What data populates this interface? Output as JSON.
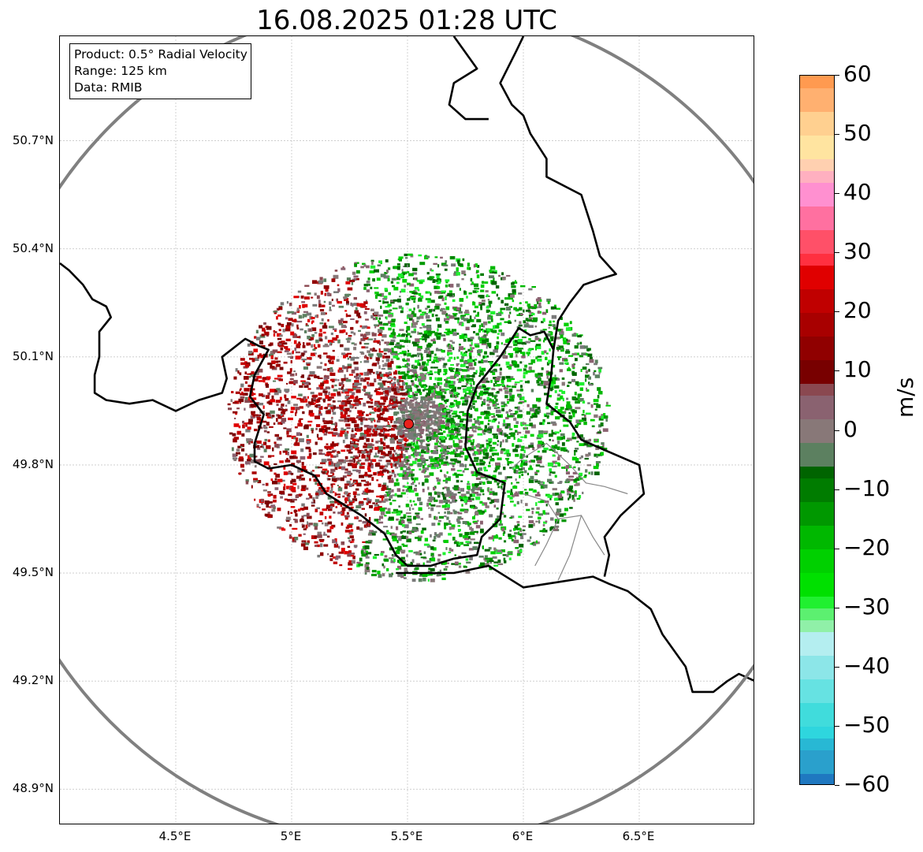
{
  "title": "16.08.2025 01:28 UTC",
  "info_box": {
    "product": "Product: 0.5° Radial Velocity",
    "range": "Range: 125 km",
    "data": "Data: RMIB"
  },
  "map": {
    "lon_range": [
      4.0,
      7.0
    ],
    "lat_range": [
      48.8,
      50.99
    ],
    "radar_site": {
      "lon": 5.505,
      "lat": 49.914
    },
    "radar_marker_color": "#e8211c",
    "range_ring_color": "#808080",
    "x_ticks": [
      {
        "value": 4.5,
        "label": "4.5°E"
      },
      {
        "value": 5.0,
        "label": "5°E"
      },
      {
        "value": 5.5,
        "label": "5.5°E"
      },
      {
        "value": 6.0,
        "label": "6°E"
      },
      {
        "value": 6.5,
        "label": "6.5°E"
      }
    ],
    "y_ticks": [
      {
        "value": 48.9,
        "label": "48.9°N"
      },
      {
        "value": 49.2,
        "label": "49.2°N"
      },
      {
        "value": 49.5,
        "label": "49.5°N"
      },
      {
        "value": 49.8,
        "label": "49.8°N"
      },
      {
        "value": 50.1,
        "label": "50.1°N"
      },
      {
        "value": 50.4,
        "label": "50.4°N"
      },
      {
        "value": 50.7,
        "label": "50.7°N"
      }
    ],
    "borders": [
      [
        [
          4.0,
          50.36
        ],
        [
          4.04,
          50.34
        ],
        [
          4.1,
          50.3
        ],
        [
          4.14,
          50.26
        ],
        [
          4.17,
          50.25
        ],
        [
          4.2,
          50.24
        ],
        [
          4.22,
          50.21
        ],
        [
          4.17,
          50.17
        ],
        [
          4.17,
          50.1
        ],
        [
          4.15,
          50.05
        ],
        [
          4.15,
          50.0
        ],
        [
          4.2,
          49.98
        ],
        [
          4.3,
          49.97
        ],
        [
          4.4,
          49.98
        ],
        [
          4.5,
          49.95
        ],
        [
          4.6,
          49.98
        ],
        [
          4.7,
          50.0
        ],
        [
          4.72,
          50.04
        ],
        [
          4.7,
          50.1
        ],
        [
          4.8,
          50.15
        ],
        [
          4.86,
          50.13
        ],
        [
          4.9,
          50.12
        ],
        [
          4.84,
          50.05
        ],
        [
          4.82,
          49.99
        ],
        [
          4.88,
          49.94
        ],
        [
          4.84,
          49.86
        ],
        [
          4.84,
          49.81
        ],
        [
          4.9,
          49.79
        ],
        [
          5.0,
          49.8
        ],
        [
          5.1,
          49.77
        ],
        [
          5.15,
          49.72
        ],
        [
          5.3,
          49.66
        ],
        [
          5.4,
          49.61
        ],
        [
          5.45,
          49.55
        ],
        [
          5.5,
          49.52
        ],
        [
          5.6,
          49.52
        ],
        [
          5.7,
          49.54
        ],
        [
          5.8,
          49.55
        ],
        [
          5.82,
          49.6
        ],
        [
          5.9,
          49.65
        ],
        [
          5.92,
          49.75
        ],
        [
          5.8,
          49.78
        ],
        [
          5.75,
          49.85
        ],
        [
          5.76,
          49.95
        ],
        [
          5.8,
          50.02
        ],
        [
          5.9,
          50.1
        ],
        [
          5.98,
          50.18
        ],
        [
          6.03,
          50.16
        ],
        [
          6.09,
          50.17
        ],
        [
          6.13,
          50.12
        ]
      ],
      [
        [
          6.13,
          50.12
        ],
        [
          6.12,
          50.05
        ],
        [
          6.1,
          49.97
        ],
        [
          6.2,
          49.92
        ],
        [
          6.25,
          49.87
        ],
        [
          6.32,
          49.85
        ],
        [
          6.5,
          49.8
        ],
        [
          6.52,
          49.72
        ],
        [
          6.42,
          49.66
        ],
        [
          6.35,
          49.6
        ],
        [
          6.37,
          49.55
        ],
        [
          6.35,
          49.49
        ]
      ],
      [
        [
          5.45,
          49.5
        ],
        [
          5.7,
          49.5
        ],
        [
          5.85,
          49.52
        ],
        [
          6.0,
          49.46
        ],
        [
          6.1,
          49.47
        ],
        [
          6.3,
          49.49
        ],
        [
          6.37,
          49.47
        ],
        [
          6.45,
          49.45
        ],
        [
          6.55,
          49.4
        ],
        [
          6.6,
          49.33
        ],
        [
          6.7,
          49.24
        ],
        [
          6.73,
          49.17
        ],
        [
          6.82,
          49.17
        ],
        [
          6.88,
          49.2
        ],
        [
          6.93,
          49.22
        ],
        [
          7.0,
          49.2
        ]
      ],
      [
        [
          6.13,
          50.12
        ],
        [
          6.15,
          50.2
        ],
        [
          6.2,
          50.25
        ],
        [
          6.26,
          50.3
        ],
        [
          6.35,
          50.32
        ],
        [
          6.4,
          50.33
        ],
        [
          6.33,
          50.38
        ],
        [
          6.3,
          50.45
        ],
        [
          6.25,
          50.55
        ],
        [
          6.1,
          50.6
        ],
        [
          6.1,
          50.65
        ],
        [
          6.03,
          50.72
        ],
        [
          6.0,
          50.77
        ],
        [
          5.95,
          50.8
        ],
        [
          5.9,
          50.86
        ],
        [
          5.97,
          50.95
        ],
        [
          6.0,
          50.99
        ]
      ],
      [
        [
          5.7,
          50.99
        ],
        [
          5.8,
          50.9
        ],
        [
          5.7,
          50.86
        ],
        [
          5.68,
          50.8
        ],
        [
          5.75,
          50.76
        ],
        [
          5.85,
          50.76
        ]
      ]
    ],
    "inner_borders": [
      [
        [
          5.95,
          49.79
        ],
        [
          6.0,
          49.82
        ],
        [
          6.1,
          49.86
        ],
        [
          6.2,
          49.8
        ],
        [
          6.27,
          49.75
        ],
        [
          6.35,
          49.74
        ],
        [
          6.45,
          49.72
        ]
      ],
      [
        [
          6.0,
          49.72
        ],
        [
          6.1,
          49.7
        ],
        [
          6.15,
          49.65
        ],
        [
          6.25,
          49.66
        ],
        [
          6.3,
          49.6
        ],
        [
          6.35,
          49.55
        ]
      ],
      [
        [
          6.15,
          49.65
        ],
        [
          6.1,
          49.58
        ],
        [
          6.05,
          49.52
        ]
      ],
      [
        [
          6.25,
          49.66
        ],
        [
          6.2,
          49.55
        ],
        [
          6.15,
          49.48
        ]
      ]
    ],
    "echo_seed": 20250816
  },
  "colorbar": {
    "unit": "m/s",
    "min": -60,
    "max": 60,
    "ticks": [
      60,
      50,
      40,
      30,
      20,
      10,
      0,
      -10,
      -20,
      -30,
      -40,
      -50,
      -60
    ],
    "tick_labels": [
      "60",
      "50",
      "40",
      "30",
      "20",
      "10",
      "0",
      "−10",
      "−20",
      "−30",
      "−40",
      "−50",
      "−60"
    ],
    "stops": [
      {
        "from": -60,
        "to": -58,
        "color": "#1f78c0"
      },
      {
        "from": -58,
        "to": -54,
        "color": "#2aa0cc"
      },
      {
        "from": -54,
        "to": -52,
        "color": "#28b8d4"
      },
      {
        "from": -52,
        "to": -50,
        "color": "#2ed6de"
      },
      {
        "from": -50,
        "to": -46,
        "color": "#40dcdc"
      },
      {
        "from": -46,
        "to": -42,
        "color": "#66e2e2"
      },
      {
        "from": -42,
        "to": -38,
        "color": "#8ce6e8"
      },
      {
        "from": -38,
        "to": -34,
        "color": "#b4eef0"
      },
      {
        "from": -34,
        "to": -32,
        "color": "#90f0a8"
      },
      {
        "from": -32,
        "to": -30,
        "color": "#5cf070"
      },
      {
        "from": -30,
        "to": -28,
        "color": "#20f030"
      },
      {
        "from": -28,
        "to": -24,
        "color": "#00e000"
      },
      {
        "from": -24,
        "to": -20,
        "color": "#00d000"
      },
      {
        "from": -20,
        "to": -16,
        "color": "#00b800"
      },
      {
        "from": -16,
        "to": -12,
        "color": "#009800"
      },
      {
        "from": -12,
        "to": -8,
        "color": "#007c00"
      },
      {
        "from": -8,
        "to": -6,
        "color": "#006400"
      },
      {
        "from": -6,
        "to": -2,
        "color": "#5c8060"
      },
      {
        "from": -2,
        "to": 2,
        "color": "#887878"
      },
      {
        "from": 2,
        "to": 6,
        "color": "#8a6270"
      },
      {
        "from": 6,
        "to": 8,
        "color": "#8a4850"
      },
      {
        "from": 8,
        "to": 12,
        "color": "#780000"
      },
      {
        "from": 12,
        "to": 16,
        "color": "#900000"
      },
      {
        "from": 16,
        "to": 20,
        "color": "#a80000"
      },
      {
        "from": 20,
        "to": 24,
        "color": "#c00000"
      },
      {
        "from": 24,
        "to": 28,
        "color": "#e00000"
      },
      {
        "from": 28,
        "to": 30,
        "color": "#ff3040"
      },
      {
        "from": 30,
        "to": 34,
        "color": "#ff5068"
      },
      {
        "from": 34,
        "to": 38,
        "color": "#ff70a0"
      },
      {
        "from": 38,
        "to": 42,
        "color": "#ff90d0"
      },
      {
        "from": 42,
        "to": 44,
        "color": "#ffb0c0"
      },
      {
        "from": 44,
        "to": 46,
        "color": "#ffd0b0"
      },
      {
        "from": 46,
        "to": 50,
        "color": "#ffe4a0"
      },
      {
        "from": 50,
        "to": 54,
        "color": "#ffd090"
      },
      {
        "from": 54,
        "to": 58,
        "color": "#ffb070"
      },
      {
        "from": 58,
        "to": 60,
        "color": "#ff9a50"
      }
    ]
  }
}
